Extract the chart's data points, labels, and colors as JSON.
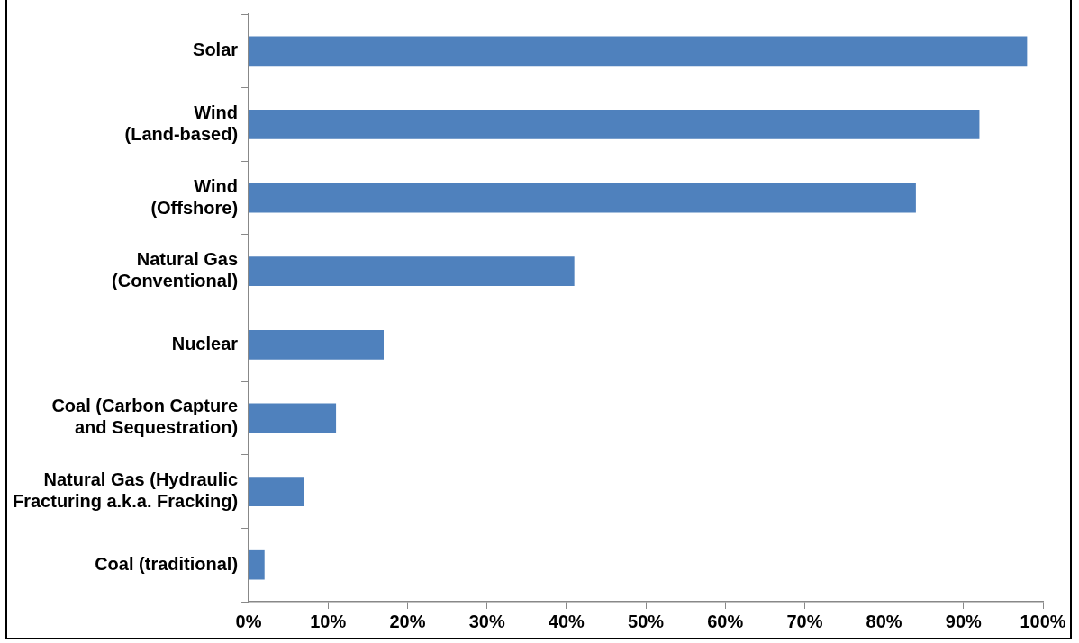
{
  "chart_data": {
    "type": "bar",
    "orientation": "horizontal",
    "categories": [
      "Solar",
      "Wind\n(Land-based)",
      "Wind\n(Offshore)",
      "Natural Gas\n(Conventional)",
      "Nuclear",
      "Coal (Carbon Capture\nand Sequestration)",
      "Natural Gas (Hydraulic\nFracturing a.k.a. Fracking)",
      "Coal (traditional)"
    ],
    "values": [
      98,
      92,
      84,
      41,
      17,
      11,
      7,
      2
    ],
    "color": "#4f81bd",
    "xlim": [
      0,
      100
    ],
    "xticks": [
      {
        "value": 0,
        "label": "0%"
      },
      {
        "value": 10,
        "label": "10%"
      },
      {
        "value": 20,
        "label": "20%"
      },
      {
        "value": 30,
        "label": "30%"
      },
      {
        "value": 40,
        "label": "40%"
      },
      {
        "value": 50,
        "label": "50%"
      },
      {
        "value": 60,
        "label": "60%"
      },
      {
        "value": 70,
        "label": "70%"
      },
      {
        "value": 80,
        "label": "80%"
      },
      {
        "value": 90,
        "label": "90%"
      },
      {
        "value": 100,
        "label": "100%"
      }
    ],
    "grid": false,
    "legend": false
  }
}
